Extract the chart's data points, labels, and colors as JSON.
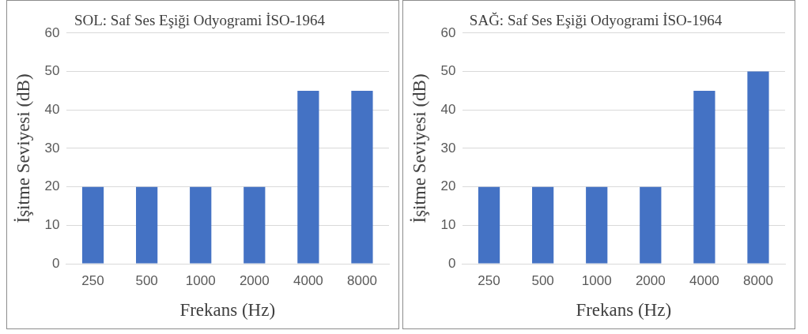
{
  "chart_data": [
    {
      "type": "bar",
      "title": "SOL: Saf Ses Eşiği Odyogrami İSO-1964",
      "xlabel": "Frekans (Hz)",
      "ylabel": "İşitme Seviyesi (dB)",
      "categories": [
        "250",
        "500",
        "1000",
        "2000",
        "4000",
        "8000"
      ],
      "values": [
        20,
        20,
        20,
        20,
        45,
        45
      ],
      "color": "#4472c4",
      "ylim": [
        0,
        60
      ],
      "yticks": [
        0,
        10,
        20,
        30,
        40,
        50,
        60
      ],
      "grid": "y",
      "legend": false
    },
    {
      "type": "bar",
      "title": "SAĞ: Saf Ses Eşiği Odyogrami İSO-1964",
      "xlabel": "Frekans (Hz)",
      "ylabel": "İşitme Seviyesi (dB)",
      "categories": [
        "250",
        "500",
        "1000",
        "2000",
        "4000",
        "8000"
      ],
      "values": [
        20,
        20,
        20,
        20,
        45,
        50
      ],
      "color": "#4472c4",
      "ylim": [
        0,
        60
      ],
      "yticks": [
        0,
        10,
        20,
        30,
        40,
        50,
        60
      ],
      "grid": "y",
      "legend": false
    }
  ]
}
